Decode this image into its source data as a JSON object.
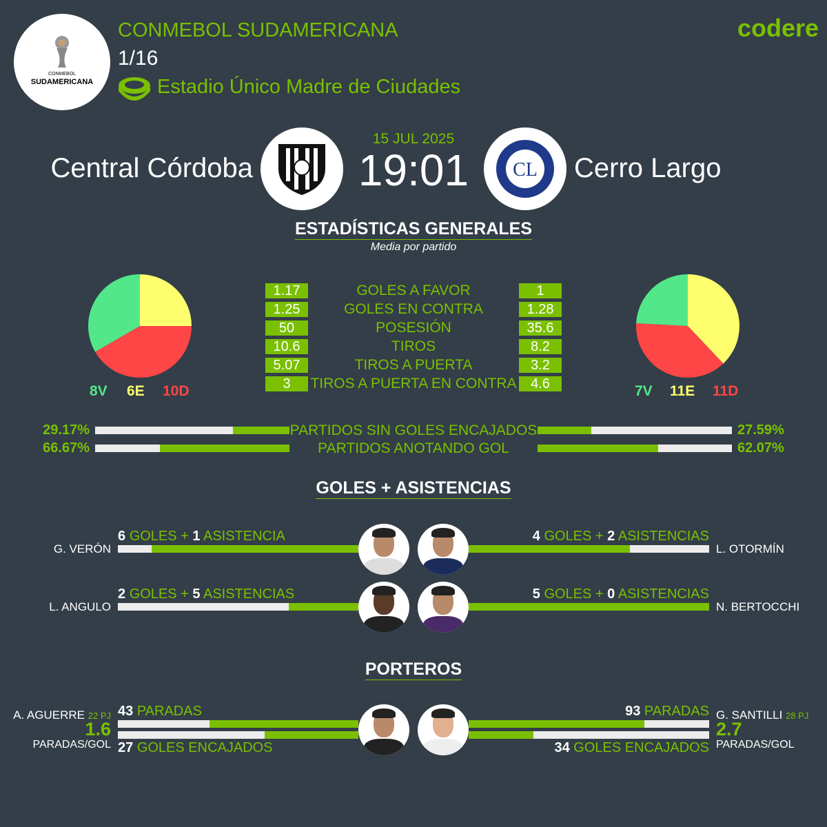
{
  "header": {
    "competition": "CONMEBOL SUDAMERICANA",
    "round": "1/16",
    "stadium": "Estadio Único Madre de Ciudades",
    "logo_text_small": "CONMEBOL",
    "logo_text": "SUDAMERICANA",
    "brand": "codere"
  },
  "match": {
    "date": "15 JUL 2025",
    "time": "19:01",
    "home": "Central Córdoba",
    "away": "Cerro Largo"
  },
  "general": {
    "title": "ESTADÍSTICAS GENERALES",
    "subtitle": "Media por partido",
    "rows": [
      {
        "label": "GOLES A FAVOR",
        "home": "1.17",
        "away": "1"
      },
      {
        "label": "GOLES EN CONTRA",
        "home": "1.25",
        "away": "1.28"
      },
      {
        "label": "POSESIÓN",
        "home": "50",
        "away": "35.6"
      },
      {
        "label": "TIROS",
        "home": "10.6",
        "away": "8.2"
      },
      {
        "label": "TIROS A PUERTA",
        "home": "5.07",
        "away": "3.2"
      },
      {
        "label": "TIROS A PUERTA EN CONTRA",
        "home": "3",
        "away": "4.6"
      }
    ],
    "colors": {
      "win": "#52e88a",
      "draw": "#ffff6e",
      "loss": "#ff4646",
      "accent": "#7ac000",
      "background": "#333e48"
    },
    "home_record": {
      "v": 8,
      "e": 6,
      "d": 10,
      "v_label": "8V",
      "e_label": "6E",
      "d_label": "10D"
    },
    "away_record": {
      "v": 7,
      "e": 11,
      "d": 11,
      "v_label": "7V",
      "e_label": "11E",
      "d_label": "11D"
    },
    "pct_rows": [
      {
        "label": "PARTIDOS SIN GOLES ENCAJADOS",
        "home": "29.17%",
        "away": "27.59%",
        "home_val": 29.17,
        "away_val": 27.59
      },
      {
        "label": "PARTIDOS ANOTANDO GOL",
        "home": "66.67%",
        "away": "62.07%",
        "home_val": 66.67,
        "away_val": 62.07
      }
    ]
  },
  "scorers": {
    "title": "GOLES + ASISTENCIAS",
    "goles_label": "GOLES +",
    "home": [
      {
        "name": "G. VERÓN",
        "goals": "6",
        "assists": "1",
        "assist_label": "ASISTENCIA",
        "fill": 0.86
      },
      {
        "name": "L. ANGULO",
        "goals": "2",
        "assists": "5",
        "assist_label": "ASISTENCIAS",
        "fill": 0.29
      }
    ],
    "away": [
      {
        "name": "L. OTORMÍN",
        "goals": "4",
        "assists": "2",
        "assist_label": "ASISTENCIAS",
        "fill": 0.67
      },
      {
        "name": "N. BERTOCCHI",
        "goals": "5",
        "assists": "0",
        "assist_label": "ASISTENCIAS",
        "fill": 1.0
      }
    ]
  },
  "keepers": {
    "title": "PORTEROS",
    "saves_label": "PARADAS",
    "conceded_label": "GOLES ENCAJADOS",
    "ratio_label": "PARADAS/GOL",
    "home": {
      "name": "A. AGUERRE",
      "pj": "22 PJ",
      "ratio": "1.6",
      "saves": "43",
      "conceded": "27",
      "saves_fill": 0.62,
      "conceded_fill": 0.39
    },
    "away": {
      "name": "G. SANTILLI",
      "pj": "28 PJ",
      "ratio": "2.7",
      "saves": "93",
      "conceded": "34",
      "saves_fill": 0.73,
      "conceded_fill": 0.27
    }
  }
}
